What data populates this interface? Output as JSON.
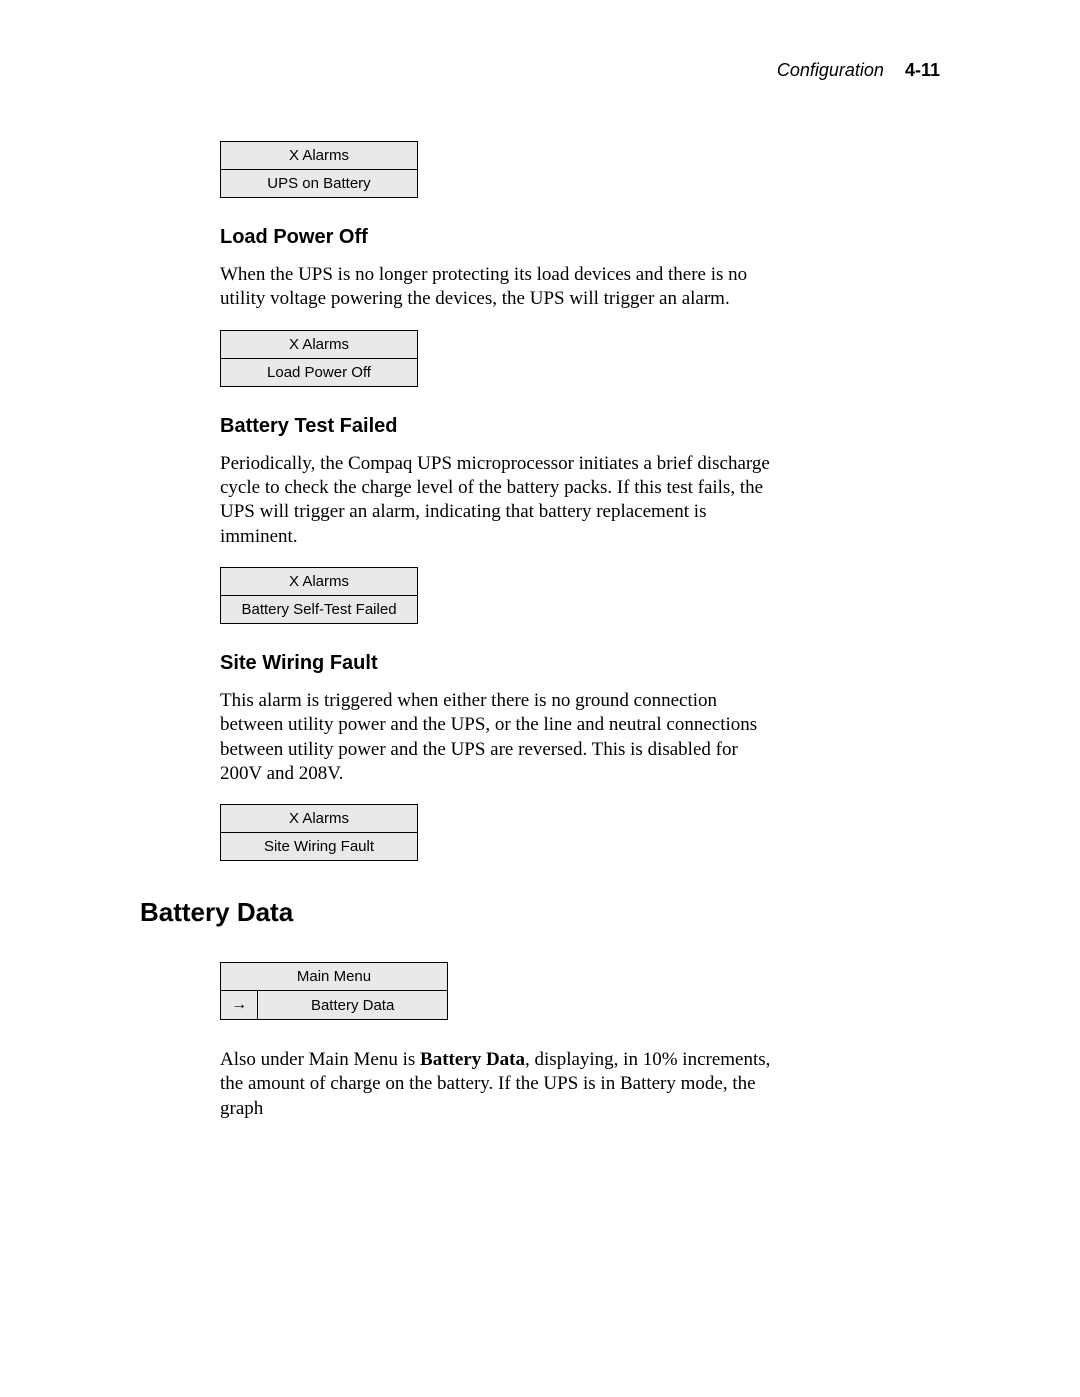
{
  "header": {
    "section": "Configuration",
    "page": "4-11"
  },
  "lcd1": {
    "row1": "X Alarms",
    "row2": "UPS on Battery"
  },
  "sec1": {
    "title": "Load Power Off",
    "para": "When the UPS is no longer protecting its load devices and there is no utility voltage powering the devices, the UPS will trigger an alarm."
  },
  "lcd2": {
    "row1": "X Alarms",
    "row2": "Load Power Off"
  },
  "sec2": {
    "title": "Battery Test Failed",
    "para": "Periodically, the Compaq UPS microprocessor initiates a brief discharge cycle to check the charge level of the battery packs. If this test fails, the UPS will trigger an alarm, indicating that battery replacement is imminent."
  },
  "lcd3": {
    "row1": "X Alarms",
    "row2": "Battery Self-Test Failed"
  },
  "sec3": {
    "title": "Site Wiring Fault",
    "para": "This alarm is triggered when either there is no ground connection between utility power and the UPS, or the line and neutral connections between utility power and the UPS are reversed. This is disabled for 200V and 208V."
  },
  "lcd4": {
    "row1": "X Alarms",
    "row2": "Site Wiring Fault"
  },
  "sec4": {
    "title": "Battery Data"
  },
  "lcd5": {
    "row1": "Main Menu",
    "arrow": "→",
    "row2": "Battery Data"
  },
  "closing": {
    "pre": "Also under Main Menu is ",
    "bold": "Battery Data",
    "post": ", displaying, in 10% increments, the amount of charge on the battery. If the UPS is in Battery mode, the graph"
  }
}
